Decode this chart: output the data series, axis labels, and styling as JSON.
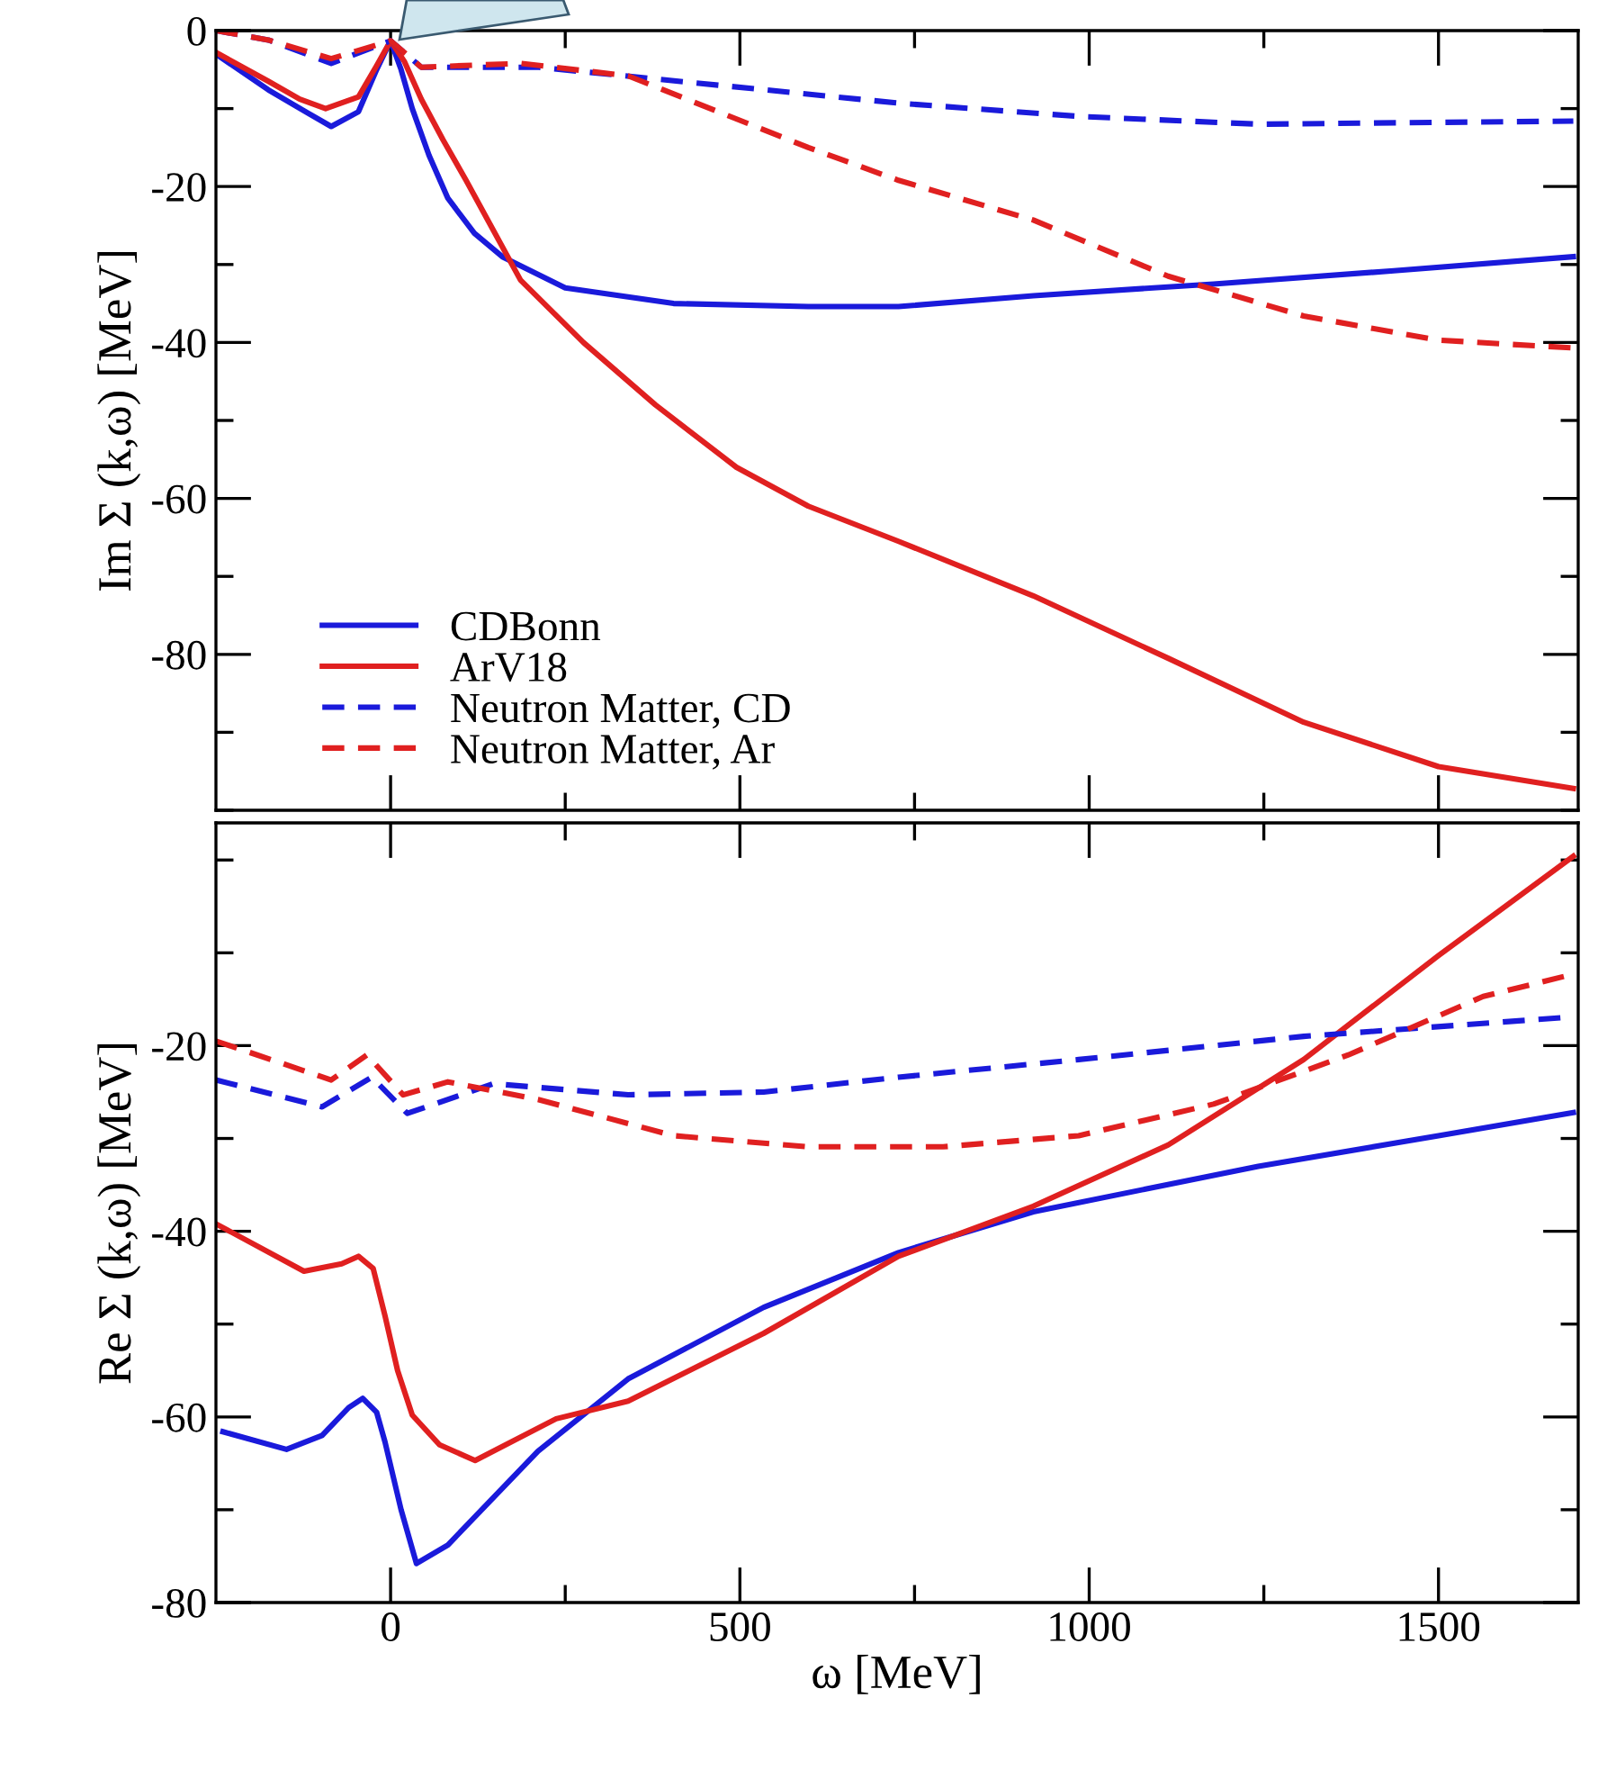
{
  "chart_data": [
    {
      "type": "line",
      "ylabel": "Im Σ (k,ω) [MeV]",
      "xlim": [
        -250,
        1700
      ],
      "ylim": [
        -100,
        0
      ],
      "xticks": [
        0,
        {
          "value": 250,
          "label": null
        },
        500,
        {
          "value": 750,
          "label": null
        },
        1000,
        {
          "value": 1250,
          "label": null
        },
        1500
      ],
      "yticks": [
        {
          "value": -100,
          "label": null
        },
        {
          "value": -90,
          "label": null
        },
        -80,
        {
          "value": -70,
          "label": null
        },
        -60,
        {
          "value": -50,
          "label": null
        },
        -40,
        {
          "value": -30,
          "label": null
        },
        -20,
        {
          "value": -10,
          "label": null
        },
        0
      ],
      "tick_labels": "y",
      "legend": "lower left",
      "grid": false,
      "series": [
        {
          "name": "CDBonn",
          "color": "#1a1adb",
          "line_style": "solid",
          "x": [
            -250,
            -175,
            -120,
            -85,
            -46,
            -20,
            0,
            15,
            31,
            55,
            82,
            120,
            160,
            250,
            405,
            598,
            727,
            920,
            1178,
            1436,
            1693
          ],
          "values": [
            -3,
            -7.6,
            -10.5,
            -12.3,
            -10.4,
            -5,
            -1.3,
            -5,
            -10,
            -16,
            -21.5,
            -26,
            -29,
            -33,
            -35,
            -35.4,
            -35.4,
            -34,
            -32.5,
            -30.8,
            -29
          ]
        },
        {
          "name": "ArV18",
          "color": "#e02020",
          "line_style": "solid",
          "x": [
            -250,
            -175,
            -130,
            -93,
            -46,
            -20,
            0,
            20,
            44,
            75,
            108,
            186,
            276,
            379,
            495,
            598,
            727,
            920,
            1113,
            1307,
            1500,
            1693
          ],
          "values": [
            -2.8,
            -6.5,
            -8.8,
            -10,
            -8.5,
            -4.5,
            -1.3,
            -4,
            -8.8,
            -14,
            -19.2,
            -32,
            -40,
            -48,
            -56,
            -61,
            -65.5,
            -72.5,
            -80.5,
            -88.7,
            -94.4,
            -97.2
          ]
        },
        {
          "name": "Neutron Matter, CD",
          "color": "#1a1adb",
          "line_style": "dashed",
          "x": [
            -250,
            -175,
            -85,
            0,
            44,
            212,
            469,
            727,
            985,
            1242,
            1693
          ],
          "values": [
            0,
            -1.2,
            -4.2,
            -1.3,
            -4.7,
            -4.7,
            -7,
            -9.3,
            -11,
            -12,
            -11.6
          ]
        },
        {
          "name": "Neutron Matter, Ar",
          "color": "#e02020",
          "line_style": "dashed",
          "x": [
            -250,
            -175,
            -85,
            0,
            44,
            186,
            340,
            469,
            598,
            727,
            920,
            1113,
            1307,
            1500,
            1693
          ],
          "values": [
            0,
            -1.2,
            -3.6,
            -1.3,
            -4.7,
            -4.2,
            -5.8,
            -10.4,
            -15,
            -19.2,
            -24.3,
            -31.5,
            -36.6,
            -39.7,
            -40.7
          ]
        }
      ]
    },
    {
      "type": "line",
      "xlabel": "ω [MeV]",
      "ylabel": "Re Σ (k,ω) [MeV]",
      "xlim": [
        -250,
        1700
      ],
      "ylim": [
        -80,
        4
      ],
      "xticks": [
        0,
        {
          "value": 250,
          "label": null
        },
        500,
        {
          "value": 750,
          "label": null
        },
        1000,
        {
          "value": 1250,
          "label": null
        },
        1500
      ],
      "yticks": [
        -80,
        {
          "value": -70,
          "label": null
        },
        -60,
        {
          "value": -50,
          "label": null
        },
        -40,
        {
          "value": -30,
          "label": null
        },
        -20,
        {
          "value": -10,
          "label": null
        },
        {
          "value": 0,
          "label": null
        }
      ],
      "legend": false,
      "grid": false,
      "series": [
        {
          "color": "#1a1adb",
          "line_style": "solid",
          "x": [
            -240,
            -149,
            -98,
            -60,
            -40,
            -20,
            -8,
            15,
            37,
            82,
            211,
            340,
            534,
            727,
            920,
            1242,
            1500,
            1693
          ],
          "values": [
            -61.6,
            -63.5,
            -62,
            -59,
            -58,
            -59.5,
            -62.7,
            -70,
            -75.8,
            -73.8,
            -63.7,
            -55.9,
            -48.2,
            -42.3,
            -37.9,
            -33,
            -29.7,
            -27.2
          ]
        },
        {
          "color": "#e02020",
          "line_style": "solid",
          "x": [
            -250,
            -124,
            -70,
            -46,
            -25,
            -8,
            10,
            31,
            70,
            121,
            237,
            340,
            534,
            727,
            920,
            1113,
            1307,
            1500,
            1693
          ],
          "values": [
            -39.2,
            -44.3,
            -43.5,
            -42.7,
            -44,
            -49.1,
            -55,
            -59.8,
            -63,
            -64.7,
            -60.2,
            -58.3,
            -51,
            -42.7,
            -37.3,
            -30.7,
            -21.5,
            -10.3,
            0.4
          ]
        },
        {
          "color": "#1a1adb",
          "line_style": "dashed",
          "x": [
            -250,
            -98,
            -27,
            24,
            147,
            340,
            534,
            727,
            985,
            1307,
            1693
          ],
          "values": [
            -23.7,
            -26.6,
            -23.4,
            -27.3,
            -24.1,
            -25.3,
            -25,
            -23.4,
            -21.5,
            -19,
            -16.9
          ]
        },
        {
          "color": "#e02020",
          "line_style": "dashed",
          "x": [
            -250,
            -85,
            -34,
            18,
            82,
            211,
            405,
            598,
            791,
            985,
            1178,
            1371,
            1564,
            1693
          ],
          "values": [
            -19.5,
            -23.7,
            -21,
            -25.3,
            -23.9,
            -25.8,
            -29.7,
            -30.9,
            -30.9,
            -29.7,
            -26.3,
            -21,
            -14.7,
            -12.3
          ]
        }
      ]
    }
  ]
}
